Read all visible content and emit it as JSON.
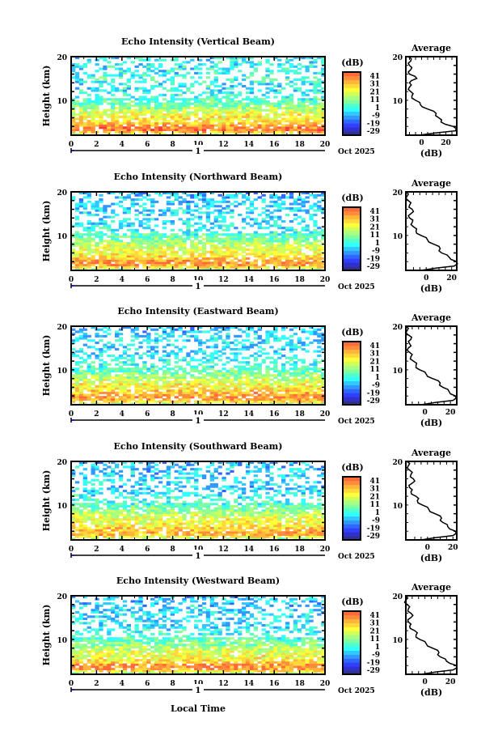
{
  "figure": {
    "xlabel": "Local Time",
    "date_label": "Oct 2025",
    "day_label": "1"
  },
  "chart_data": [
    {
      "type": "heatmap",
      "title": "Echo Intensity (Vertical Beam)",
      "xlabel": "Local Time",
      "ylabel": "Height (km)",
      "xlim": [
        0,
        20
      ],
      "ylim": [
        2,
        20
      ],
      "xticks": [
        "0",
        "2",
        "4",
        "6",
        "8",
        "10",
        "12",
        "14",
        "16",
        "18",
        "20"
      ],
      "yticks": [
        "10",
        "20"
      ],
      "colorbar": {
        "label": "(dB)",
        "ticks": [
          "41",
          "31",
          "21",
          "11",
          "1",
          "-9",
          "-19",
          "-29"
        ],
        "range": [
          -34,
          46
        ]
      },
      "average": {
        "title": "Average",
        "xlabel": "(dB)",
        "xticks": [
          "0",
          "20"
        ],
        "xlim": [
          -13,
          29
        ],
        "heights": [
          2,
          3,
          4,
          5,
          6,
          7,
          8,
          9,
          10,
          11,
          12,
          13,
          14,
          15,
          16,
          17,
          18,
          19,
          20
        ],
        "values": [
          -2,
          28,
          26,
          16,
          14,
          12,
          5,
          -1,
          -5,
          -8,
          -9,
          -10,
          -10,
          -4,
          -10,
          -9,
          -10,
          -9,
          -11
        ]
      }
    },
    {
      "type": "heatmap",
      "title": "Echo Intensity (Northward Beam)",
      "xlabel": "Local Time",
      "ylabel": "Height (km)",
      "xlim": [
        0,
        20
      ],
      "ylim": [
        2,
        20
      ],
      "xticks": [
        "0",
        "2",
        "4",
        "6",
        "8",
        "10",
        "12",
        "14",
        "16",
        "18",
        "20"
      ],
      "yticks": [
        "10",
        "20"
      ],
      "colorbar": {
        "label": "(dB)",
        "ticks": [
          "41",
          "31",
          "21",
          "11",
          "1",
          "-9",
          "-19",
          "-29"
        ],
        "range": [
          -34,
          46
        ]
      },
      "average": {
        "title": "Average",
        "xlabel": "(dB)",
        "xticks": [
          "0",
          "20"
        ],
        "xlim": [
          -16,
          24
        ],
        "heights": [
          2,
          3,
          4,
          5,
          6,
          7,
          8,
          9,
          10,
          11,
          12,
          13,
          14,
          15,
          16,
          17,
          18,
          19,
          20
        ],
        "values": [
          -4,
          22,
          24,
          18,
          12,
          11,
          6,
          1,
          -4,
          -8,
          -10,
          -11,
          -13,
          -12,
          -11,
          -13,
          -14,
          -15,
          -16
        ]
      }
    },
    {
      "type": "heatmap",
      "title": "Echo Intensity (Eastward Beam)",
      "xlabel": "Local Time",
      "ylabel": "Height (km)",
      "xlim": [
        0,
        20
      ],
      "ylim": [
        2,
        20
      ],
      "xticks": [
        "0",
        "2",
        "4",
        "6",
        "8",
        "10",
        "12",
        "14",
        "16",
        "18",
        "20"
      ],
      "yticks": [
        "10",
        "20"
      ],
      "colorbar": {
        "label": "(dB)",
        "ticks": [
          "41",
          "31",
          "21",
          "11",
          "1",
          "-9",
          "-19",
          "-29"
        ],
        "range": [
          -34,
          46
        ]
      },
      "average": {
        "title": "Average",
        "xlabel": "(dB)",
        "xticks": [
          "0",
          "20"
        ],
        "xlim": [
          -15,
          25
        ],
        "heights": [
          2,
          3,
          4,
          5,
          6,
          7,
          8,
          9,
          10,
          11,
          12,
          13,
          14,
          15,
          16,
          17,
          18,
          19,
          20
        ],
        "values": [
          -3,
          22,
          24,
          19,
          14,
          12,
          6,
          1,
          -4,
          -7,
          -9,
          -11,
          -12,
          -13,
          -12,
          -11,
          -13,
          -14,
          -15
        ]
      }
    },
    {
      "type": "heatmap",
      "title": "Echo Intensity (Southward Beam)",
      "xlabel": "Local Time",
      "ylabel": "Height (km)",
      "xlim": [
        0,
        20
      ],
      "ylim": [
        2,
        20
      ],
      "xticks": [
        "0",
        "2",
        "4",
        "6",
        "8",
        "10",
        "12",
        "14",
        "16",
        "18",
        "20"
      ],
      "yticks": [
        "10",
        "20"
      ],
      "colorbar": {
        "label": "(dB)",
        "ticks": [
          "41",
          "31",
          "21",
          "11",
          "1",
          "-9",
          "-19",
          "-29"
        ],
        "range": [
          -34,
          46
        ]
      },
      "average": {
        "title": "Average",
        "xlabel": "(dB)",
        "xticks": [
          "0",
          "20"
        ],
        "xlim": [
          -17,
          23
        ],
        "heights": [
          2,
          3,
          4,
          5,
          6,
          7,
          8,
          9,
          10,
          11,
          12,
          13,
          14,
          15,
          16,
          17,
          18,
          19,
          20
        ],
        "values": [
          -5,
          20,
          22,
          16,
          12,
          11,
          6,
          1,
          -4,
          -8,
          -9,
          -13,
          -14,
          -12,
          -11,
          -13,
          -14,
          -15,
          -16
        ]
      }
    },
    {
      "type": "heatmap",
      "title": "Echo Intensity (Westward Beam)",
      "xlabel": "Local Time",
      "ylabel": "Height (km)",
      "xlim": [
        0,
        20
      ],
      "ylim": [
        2,
        20
      ],
      "xticks": [
        "0",
        "2",
        "4",
        "6",
        "8",
        "10",
        "12",
        "14",
        "16",
        "18",
        "20"
      ],
      "yticks": [
        "10",
        "20"
      ],
      "colorbar": {
        "label": "(dB)",
        "ticks": [
          "41",
          "31",
          "21",
          "11",
          "1",
          "-9",
          "-19",
          "-29"
        ],
        "range": [
          -34,
          46
        ]
      },
      "average": {
        "title": "Average",
        "xlabel": "(dB)",
        "xticks": [
          "0",
          "20"
        ],
        "xlim": [
          -15,
          25
        ],
        "heights": [
          2,
          3,
          4,
          5,
          6,
          7,
          8,
          9,
          10,
          11,
          12,
          13,
          14,
          15,
          16,
          17,
          18,
          19,
          20
        ],
        "values": [
          -3,
          22,
          25,
          17,
          12,
          11,
          6,
          1,
          -4,
          -7,
          -8,
          -12,
          -13,
          -11,
          -11,
          -13,
          -14,
          -15,
          -15
        ]
      }
    }
  ],
  "colors": {
    "scale": [
      "#303060",
      "#303090",
      "#3030d0",
      "#3040ff",
      "#3068ff",
      "#3098ff",
      "#30c8ff",
      "#30ffff",
      "#50ffd0",
      "#80ffa0",
      "#a8ff80",
      "#d0ff5a",
      "#ffff3a",
      "#ffd83a",
      "#ffb43a",
      "#ff8c3a",
      "#ff6a3a",
      "#ff3a3a"
    ],
    "axis": "#000000",
    "day_marker": "#2020c0"
  }
}
